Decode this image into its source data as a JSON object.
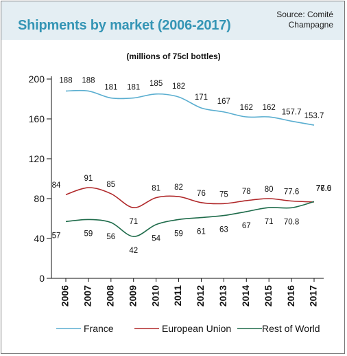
{
  "title": "Shipments by market (2006-2017)",
  "source": {
    "line1": "Source: Comité",
    "line2": "Champagne"
  },
  "subtitle": "(millions of 75cl bottles)",
  "chart_data": {
    "type": "line",
    "title": "Shipments by market (2006-2017)",
    "subtitle": "(millions of 75cl bottles)",
    "x": [
      "2006",
      "2007",
      "2008",
      "2009",
      "2010",
      "2011",
      "2012",
      "2013",
      "2014",
      "2015",
      "2016",
      "2017"
    ],
    "ylim": [
      0,
      200
    ],
    "yticks": [
      0,
      40,
      80,
      120,
      160,
      200
    ],
    "grid": false,
    "legend_position": "bottom",
    "series": [
      {
        "name": "France",
        "color": "#5aaed0",
        "values": [
          188,
          188,
          181,
          181,
          185,
          182,
          171,
          167,
          162,
          162,
          157.7,
          153.7
        ],
        "labels": [
          "188",
          "188",
          "181",
          "181",
          "185",
          "182",
          "171",
          "167",
          "162",
          "162",
          "157.7",
          "153.7"
        ]
      },
      {
        "name": "European Union",
        "color": "#b0282a",
        "values": [
          84,
          91,
          85,
          71,
          81,
          82,
          76,
          75,
          78,
          80,
          77.6,
          76.6
        ],
        "labels": [
          "84",
          "91",
          "85",
          "71",
          "81",
          "82",
          "76",
          "75",
          "78",
          "80",
          "77.6",
          "76.6"
        ]
      },
      {
        "name": "Rest of World",
        "color": "#1e6b4a",
        "values": [
          57,
          59,
          56,
          42,
          54,
          59,
          61,
          63,
          67,
          71,
          70.8,
          77.0
        ],
        "labels": [
          "57",
          "59",
          "56",
          "42",
          "54",
          "59",
          "61",
          "63",
          "67",
          "71",
          "70.8",
          "77.0"
        ]
      }
    ]
  }
}
